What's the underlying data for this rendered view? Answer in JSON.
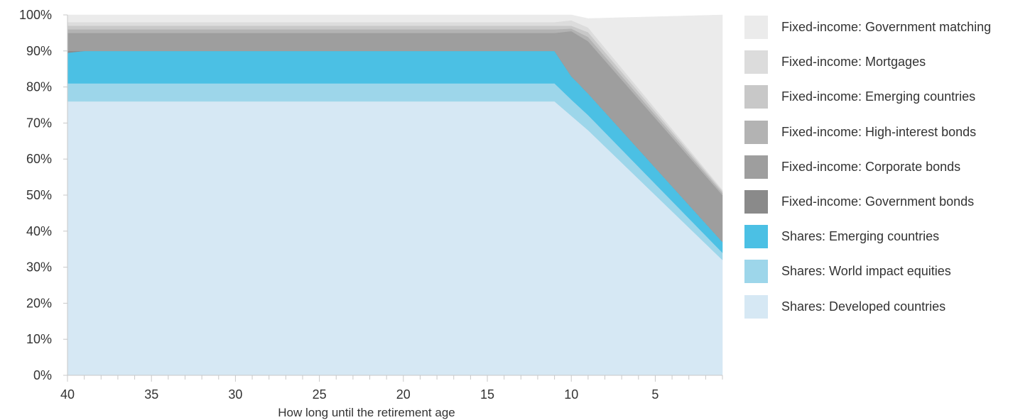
{
  "chart_data": {
    "type": "area",
    "stacked": true,
    "xlabel": "How long until the retirement age",
    "ylabel": "",
    "x": [
      40,
      39,
      11,
      10,
      9,
      1
    ],
    "xlim": [
      40,
      1
    ],
    "ylim": [
      0,
      100
    ],
    "x_ticks": [
      40,
      35,
      30,
      25,
      20,
      15,
      10,
      5
    ],
    "y_ticks": [
      "0%",
      "10%",
      "20%",
      "30%",
      "40%",
      "50%",
      "60%",
      "70%",
      "80%",
      "90%",
      "100%"
    ],
    "legend_position": "right",
    "series": [
      {
        "name": "Shares: Developed countries",
        "color": "#d6e8f4",
        "values": [
          76,
          76,
          76,
          72,
          68,
          32
        ]
      },
      {
        "name": "Shares: World impact equities",
        "color": "#9dd6ea",
        "values": [
          5,
          5,
          5,
          4.5,
          4.2,
          2
        ]
      },
      {
        "name": "Shares: Emerging countries",
        "color": "#4bc0e4",
        "values": [
          8.5,
          9,
          9,
          6.5,
          6,
          3
        ]
      },
      {
        "name": "Fixed-income: Government bonds",
        "color": "#8a8a8a",
        "values": [
          0.5,
          0,
          0,
          0,
          0,
          0
        ]
      },
      {
        "name": "Fixed-income: Corporate bonds",
        "color": "#9e9e9e",
        "values": [
          5,
          5,
          5,
          12.5,
          14.5,
          13
        ]
      },
      {
        "name": "Fixed-income: High-interest bonds",
        "color": "#b3b3b3",
        "values": [
          1,
          1,
          1,
          0.7,
          1.2,
          0.6
        ]
      },
      {
        "name": "Fixed-income: Emerging countries",
        "color": "#c8c8c8",
        "values": [
          1,
          1,
          1,
          0.8,
          1.3,
          0.5
        ]
      },
      {
        "name": "Fixed-income: Mortgages",
        "color": "#dcdcdc",
        "values": [
          1,
          1,
          1,
          1.5,
          1.3,
          0.4
        ]
      },
      {
        "name": "Fixed-income: Government matching",
        "color": "#ebebeb",
        "values": [
          2,
          2,
          2,
          1.5,
          2.5,
          48.5
        ]
      }
    ]
  }
}
